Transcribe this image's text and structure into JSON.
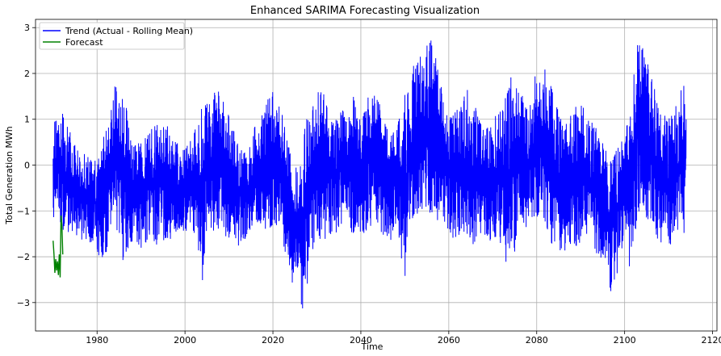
{
  "chart_data": {
    "type": "line",
    "title": "Enhanced SARIMA Forecasting Visualization",
    "xlabel": "Time",
    "ylabel": "Total Generation MWh",
    "xlim": [
      1966,
      2121
    ],
    "ylim": [
      -3.62,
      3.18
    ],
    "xticks": [
      1980,
      2000,
      2020,
      2040,
      2060,
      2080,
      2100,
      2120
    ],
    "yticks": [
      -3,
      -2,
      -1,
      0,
      1,
      2,
      3
    ],
    "grid": true,
    "legend_position": "top-left",
    "colors": {
      "trend": "#0000ff",
      "forecast": "#008000",
      "grid": "#b0b0b0"
    },
    "series": [
      {
        "name": "Trend (Actual - Rolling Mean)",
        "x_range": [
          1970,
          2114
        ],
        "envelope_x": [
          1970,
          1971,
          1972,
          1974,
          1976,
          1978,
          1980,
          1981,
          1983,
          1984,
          1986,
          1988,
          1990,
          1992,
          1994,
          1996,
          1998,
          2000,
          2002,
          2004,
          2005,
          2007,
          2008,
          2010,
          2012,
          2014,
          2016,
          2018,
          2020,
          2022,
          2024,
          2026,
          2027,
          2029,
          2030,
          2032,
          2034,
          2036,
          2038,
          2040,
          2042,
          2044,
          2046,
          2048,
          2050,
          2052,
          2054,
          2056,
          2058,
          2060,
          2062,
          2064,
          2066,
          2068,
          2070,
          2072,
          2074,
          2076,
          2078,
          2080,
          2082,
          2084,
          2086,
          2088,
          2090,
          2092,
          2094,
          2096,
          2097,
          2099,
          2100,
          2101,
          2103,
          2104,
          2106,
          2108,
          2110,
          2112,
          2114
        ],
        "envelope_upper": [
          0.9,
          1.3,
          1.35,
          0.7,
          0.3,
          0.2,
          0.25,
          0.5,
          1.2,
          1.9,
          1.6,
          0.6,
          0.5,
          0.8,
          1.1,
          1.0,
          0.5,
          0.4,
          0.8,
          1.5,
          1.4,
          1.7,
          1.8,
          1.2,
          0.5,
          0.3,
          0.9,
          1.3,
          1.7,
          1.2,
          0.3,
          -0.2,
          0.9,
          1.3,
          1.9,
          1.5,
          1.0,
          1.3,
          1.6,
          1.0,
          1.6,
          1.5,
          0.9,
          0.8,
          1.6,
          2.3,
          2.4,
          2.9,
          2.0,
          1.1,
          1.3,
          1.8,
          1.4,
          0.8,
          1.1,
          1.4,
          2.0,
          1.6,
          1.4,
          2.1,
          2.2,
          1.6,
          1.0,
          1.2,
          1.6,
          1.0,
          0.8,
          0.4,
          0.3,
          0.5,
          0.6,
          1.4,
          2.7,
          2.6,
          2.0,
          1.2,
          1.0,
          1.5,
          1.9
        ],
        "envelope_lower": [
          -1.2,
          -1.3,
          -1.4,
          -1.6,
          -1.6,
          -1.7,
          -1.9,
          -2.6,
          -1.5,
          -1.3,
          -2.2,
          -1.7,
          -1.9,
          -1.6,
          -1.8,
          -1.7,
          -1.5,
          -1.6,
          -1.6,
          -2.7,
          -1.3,
          -1.6,
          -1.3,
          -1.7,
          -1.8,
          -1.6,
          -1.3,
          -1.4,
          -1.4,
          -1.5,
          -2.7,
          -2.9,
          -3.3,
          -2.0,
          -1.6,
          -1.7,
          -1.6,
          -1.3,
          -1.5,
          -1.7,
          -1.4,
          -1.5,
          -1.8,
          -1.4,
          -2.6,
          -1.2,
          -1.0,
          -1.1,
          -1.3,
          -1.5,
          -1.7,
          -1.6,
          -1.8,
          -1.6,
          -1.7,
          -1.9,
          -2.7,
          -1.2,
          -1.4,
          -1.1,
          -1.5,
          -1.8,
          -1.9,
          -1.8,
          -1.9,
          -1.6,
          -2.0,
          -2.1,
          -3.1,
          -2.1,
          -1.8,
          -2.6,
          -1.2,
          -1.1,
          -1.5,
          -1.7,
          -1.8,
          -1.6,
          -1.5
        ]
      },
      {
        "name": "Forecast",
        "x": [
          1970.0,
          1970.2,
          1970.4,
          1970.6,
          1970.8,
          1971.0,
          1971.2,
          1971.4,
          1971.6,
          1971.8,
          1972.0,
          1972.2
        ],
        "y": [
          -1.65,
          -1.95,
          -2.35,
          -2.05,
          -2.3,
          -2.1,
          -2.4,
          -1.95,
          -2.45,
          -1.1,
          -1.3,
          -1.95
        ]
      }
    ]
  }
}
